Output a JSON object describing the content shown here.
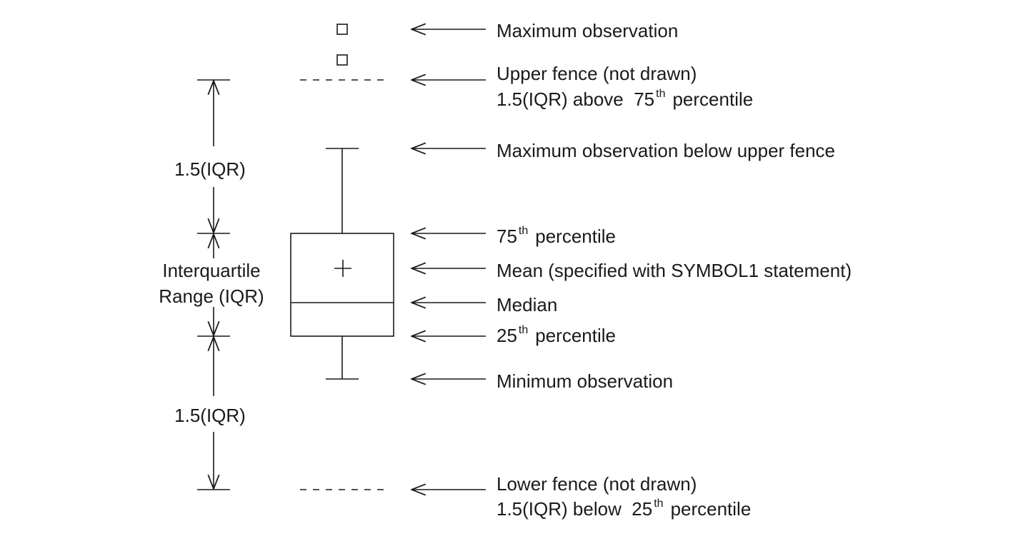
{
  "labels": {
    "max_obs": "Maximum observation",
    "upper_fence_1": "Upper fence (not drawn)",
    "upper_fence_2a": "1.5(IQR) above  75",
    "upper_fence_sup": "th",
    "upper_fence_2b": "percentile",
    "max_below_fence": "Maximum observation below upper fence",
    "p75_a": "75",
    "p75_sup": "th",
    "p75_b": "percentile",
    "mean": "Mean (specified with SYMBOL1 statement)",
    "median": "Median",
    "p25_a": "25",
    "p25_sup": "th",
    "p25_b": "percentile",
    "min_obs": "Minimum observation",
    "lower_fence_1": "Lower fence (not drawn)",
    "lower_fence_2a": "1.5(IQR) below  25",
    "lower_fence_sup": "th",
    "lower_fence_2b": "percentile"
  },
  "left": {
    "iqr_upper": "1.5(IQR)",
    "iqr_line1": "Interquartile",
    "iqr_line2": "Range (IQR)",
    "iqr_lower": "1.5(IQR)"
  }
}
